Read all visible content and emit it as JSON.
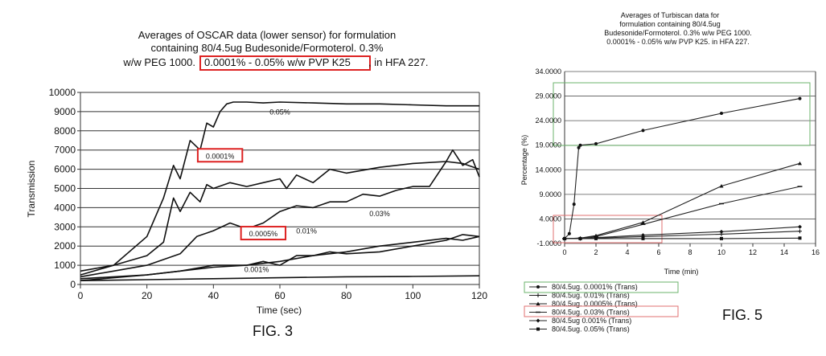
{
  "figures": {
    "left": "FIG. 3",
    "right": "FIG. 5"
  },
  "chart_data": [
    {
      "type": "line",
      "title_lines": [
        "Averages of OSCAR data (lower sensor) for  formulation",
        "containing 80/4.5ug Budesonide/Formoterol.  0.3%",
        "w/w PEG 1000. ",
        "0.0001% - 0.05% w/w PVP K25",
        ", in HFA 227."
      ],
      "xlabel": "Time (sec)",
      "ylabel": "Transmission",
      "xlim": [
        0,
        120
      ],
      "ylim": [
        0,
        10000
      ],
      "xticks": [
        "0",
        "20",
        "40",
        "60",
        "80",
        "100",
        "120"
      ],
      "yticks": [
        "0",
        "1000",
        "2000",
        "3000",
        "4000",
        "5000",
        "6000",
        "7000",
        "8000",
        "9000",
        "10000"
      ],
      "grid": "horizontal",
      "annotations": [
        {
          "text": "0.05%",
          "x": 60,
          "y": 8900,
          "boxed": false
        },
        {
          "text": "0.0001%",
          "x": 42,
          "y": 6600,
          "boxed": true
        },
        {
          "text": "0.03%",
          "x": 90,
          "y": 3600,
          "boxed": false
        },
        {
          "text": "0.0005%",
          "x": 55,
          "y": 2550,
          "boxed": true
        },
        {
          "text": "0.01%",
          "x": 68,
          "y": 2700,
          "boxed": false
        },
        {
          "text": "0.001%",
          "x": 53,
          "y": 700,
          "boxed": false
        }
      ],
      "series": [
        {
          "name": "0.05%",
          "x": [
            0,
            10,
            20,
            25,
            28,
            30,
            33,
            36,
            38,
            40,
            42,
            44,
            46,
            48,
            50,
            55,
            60,
            70,
            80,
            90,
            100,
            110,
            120
          ],
          "y": [
            500,
            1000,
            2500,
            4500,
            6200,
            5500,
            7500,
            7000,
            8400,
            8200,
            9000,
            9400,
            9500,
            9500,
            9500,
            9450,
            9500,
            9450,
            9400,
            9400,
            9350,
            9300,
            9300
          ]
        },
        {
          "name": "0.0001%",
          "x": [
            0,
            10,
            20,
            25,
            28,
            30,
            33,
            36,
            38,
            40,
            45,
            50,
            55,
            60,
            62,
            65,
            70,
            75,
            80,
            90,
            100,
            110,
            112,
            115,
            118,
            120
          ],
          "y": [
            700,
            1000,
            1500,
            2200,
            4500,
            3800,
            4800,
            4300,
            5200,
            5000,
            5300,
            5100,
            5300,
            5500,
            5000,
            5700,
            5300,
            6000,
            5800,
            6100,
            6300,
            6400,
            7000,
            6200,
            6500,
            5600
          ]
        },
        {
          "name": "0.03%",
          "x": [
            0,
            10,
            20,
            30,
            35,
            40,
            45,
            50,
            55,
            60,
            65,
            70,
            75,
            80,
            85,
            90,
            95,
            100,
            105,
            110,
            115,
            120
          ],
          "y": [
            400,
            700,
            1000,
            1600,
            2500,
            2800,
            3200,
            2900,
            3200,
            3800,
            4100,
            4000,
            4300,
            4300,
            4700,
            4600,
            4900,
            5100,
            5100,
            6400,
            6300,
            6000
          ]
        },
        {
          "name": "0.01%",
          "x": [
            0,
            20,
            30,
            40,
            50,
            55,
            60,
            65,
            70,
            75,
            80,
            90,
            100,
            110,
            115,
            120
          ],
          "y": [
            200,
            500,
            700,
            1000,
            1000,
            1200,
            1000,
            1500,
            1500,
            1700,
            1600,
            1700,
            2000,
            2300,
            2600,
            2500
          ]
        },
        {
          "name": "0.0005%",
          "x": [
            0,
            20,
            30,
            40,
            50,
            60,
            70,
            80,
            90,
            100,
            110,
            115,
            120
          ],
          "y": [
            300,
            500,
            700,
            900,
            1000,
            1200,
            1500,
            1700,
            2000,
            2200,
            2400,
            2300,
            2500
          ]
        },
        {
          "name": "0.001%",
          "x": [
            0,
            20,
            40,
            60,
            80,
            100,
            120
          ],
          "y": [
            200,
            250,
            300,
            350,
            400,
            420,
            450
          ]
        }
      ]
    },
    {
      "type": "line",
      "title_lines": [
        "Averages of Turbiscan data for",
        "formulation containing 80/4.5ug",
        "Budesonide/Formoterol.  0.3% w/w PEG 1000.",
        "0.0001% - 0.05% w/w PVP K25. in HFA 227."
      ],
      "xlabel": "Time (min)",
      "ylabel": "Percentage (%)",
      "xlim": [
        0,
        16
      ],
      "ylim": [
        -1,
        34
      ],
      "xticks": [
        "0",
        "2",
        "4",
        "6",
        "8",
        "10",
        "12",
        "14",
        "16"
      ],
      "yticks": [
        "-1.0000",
        "4.0000",
        "9.0000",
        "14.0000",
        "19.0000",
        "24.0000",
        "29.0000",
        "34.0000"
      ],
      "grid": "horizontal",
      "series": [
        {
          "name": "80/4.5ug. 0.0001% (Trans)",
          "x": [
            0,
            0.3,
            0.6,
            0.9,
            1,
            2,
            5,
            10,
            15
          ],
          "y": [
            0,
            1,
            7,
            18.5,
            19,
            19.3,
            22,
            25.5,
            28.5
          ]
        },
        {
          "name": "80/4.5ug. 0.01% (Trans)",
          "x": [
            0,
            1,
            2,
            5,
            10,
            15
          ],
          "y": [
            0,
            0,
            0.1,
            0.4,
            0.9,
            1.5
          ]
        },
        {
          "name": "80/4.5ug. 0.0005% (Trans)",
          "x": [
            0,
            1,
            2,
            5,
            10,
            15
          ],
          "y": [
            0,
            0.1,
            0.6,
            3.3,
            10.7,
            15.3
          ]
        },
        {
          "name": "80/4.5ug. 0.03% (Trans)",
          "x": [
            0,
            1,
            2,
            5,
            10,
            15
          ],
          "y": [
            0,
            0.1,
            0.4,
            2.9,
            7.1,
            10.6
          ]
        },
        {
          "name": "80/4.5ug 0.001% (Trans)",
          "x": [
            0,
            1,
            2,
            5,
            10,
            15
          ],
          "y": [
            0,
            0,
            0.2,
            0.7,
            1.4,
            2.4
          ]
        },
        {
          "name": "80/4.5ug. 0.05% (Trans)",
          "x": [
            0,
            1,
            2,
            5,
            10,
            15
          ],
          "y": [
            0,
            0,
            0,
            0,
            0,
            0.1
          ]
        }
      ]
    }
  ]
}
